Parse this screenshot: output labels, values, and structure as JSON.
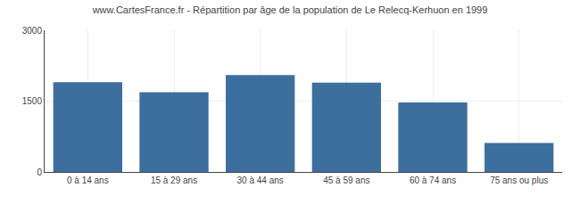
{
  "chart_data": {
    "type": "bar",
    "title": "www.CartesFrance.fr - Répartition par âge de la population de Le Relecq-Kerhuon en 1999",
    "categories": [
      "0 à 14 ans",
      "15 à 29 ans",
      "30 à 44 ans",
      "45 à 59 ans",
      "60 à 74 ans",
      "75 ans ou plus"
    ],
    "values": [
      1900,
      1690,
      2050,
      1890,
      1470,
      615
    ],
    "color": "#3d6f9e",
    "ylim": [
      0,
      3000
    ],
    "yticks": [
      0,
      1500,
      3000
    ],
    "grid": true
  }
}
